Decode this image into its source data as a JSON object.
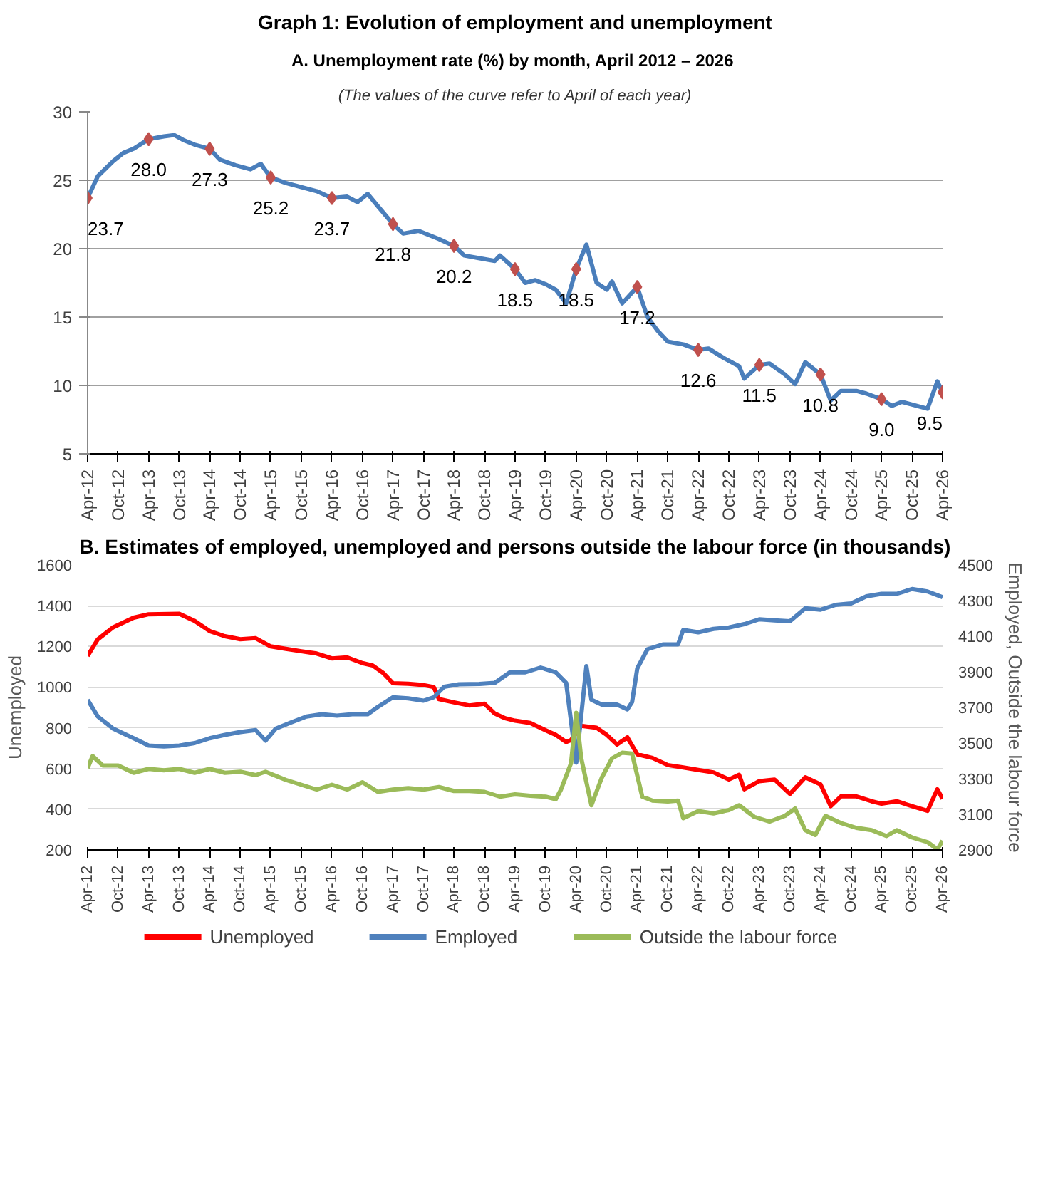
{
  "chart_data": [
    {
      "type": "line",
      "title": "Graph 1: Evolution of employment and unemployment",
      "subtitle": "A. Unemployment rate (%) by month, April  2012 – 2026",
      "annotations": [
        "(The values of the curve refer to April of each year)"
      ],
      "xlim": [
        "2012-04",
        "2026-04"
      ],
      "xticks": [
        {
          "value": "2012-04",
          "label": "Apr-12"
        },
        {
          "value": "2012-10",
          "label": "Oct-12"
        },
        {
          "value": "2013-04",
          "label": "Apr-13"
        },
        {
          "value": "2013-10",
          "label": "Oct-13"
        },
        {
          "value": "2014-04",
          "label": "Apr-14"
        },
        {
          "value": "2014-10",
          "label": "Oct-14"
        },
        {
          "value": "2015-04",
          "label": "Apr-15"
        },
        {
          "value": "2015-10",
          "label": "Oct-15"
        },
        {
          "value": "2016-04",
          "label": "Apr-16"
        },
        {
          "value": "2016-10",
          "label": "Oct-16"
        },
        {
          "value": "2017-04",
          "label": "Apr-17"
        },
        {
          "value": "2017-10",
          "label": "Oct-17"
        },
        {
          "value": "2018-04",
          "label": "Apr-18"
        },
        {
          "value": "2018-10",
          "label": "Oct-18"
        },
        {
          "value": "2019-04",
          "label": "Apr-19"
        },
        {
          "value": "2019-10",
          "label": "Oct-19"
        },
        {
          "value": "2020-04",
          "label": "Apr-20"
        },
        {
          "value": "2020-10",
          "label": "Oct-20"
        },
        {
          "value": "2021-04",
          "label": "Apr-21"
        },
        {
          "value": "2021-10",
          "label": "Oct-21"
        },
        {
          "value": "2022-04",
          "label": "Apr-22"
        },
        {
          "value": "2022-10",
          "label": "Oct-22"
        },
        {
          "value": "2023-04",
          "label": "Apr-23"
        },
        {
          "value": "2023-10",
          "label": "Oct-23"
        },
        {
          "value": "2024-04",
          "label": "Apr-24"
        },
        {
          "value": "2024-10",
          "label": "Oct-24"
        },
        {
          "value": "2025-04",
          "label": "Apr-25"
        },
        {
          "value": "2025-10",
          "label": "Oct-25"
        },
        {
          "value": "2026-04",
          "label": "Apr-26"
        }
      ],
      "ylim": [
        5,
        30
      ],
      "yticks": [
        5,
        10,
        15,
        20,
        25,
        30
      ],
      "grid": "y",
      "legend": false,
      "series": [
        {
          "type": "line",
          "color": "#4a7ebb",
          "x": [
            "2012-04",
            "2012-06",
            "2012-09",
            "2012-11",
            "2013-01",
            "2013-04",
            "2013-07",
            "2013-09",
            "2013-11",
            "2014-01",
            "2014-04",
            "2014-06",
            "2014-09",
            "2014-12",
            "2015-02",
            "2015-04",
            "2015-07",
            "2015-10",
            "2016-01",
            "2016-04",
            "2016-07",
            "2016-09",
            "2016-11",
            "2017-01",
            "2017-04",
            "2017-06",
            "2017-09",
            "2017-11",
            "2018-01",
            "2018-04",
            "2018-06",
            "2018-09",
            "2018-12",
            "2019-01",
            "2019-04",
            "2019-06",
            "2019-08",
            "2019-10",
            "2019-12",
            "2020-02",
            "2020-04",
            "2020-06",
            "2020-08",
            "2020-10",
            "2020-11",
            "2021-01",
            "2021-04",
            "2021-06",
            "2021-08",
            "2021-10",
            "2022-01",
            "2022-04",
            "2022-06",
            "2022-09",
            "2022-12",
            "2023-01",
            "2023-04",
            "2023-06",
            "2023-09",
            "2023-11",
            "2024-01",
            "2024-04",
            "2024-06",
            "2024-08",
            "2024-11",
            "2025-01",
            "2025-04",
            "2025-06",
            "2025-08",
            "2025-10",
            "2026-01",
            "2026-03",
            "2026-04"
          ],
          "values": [
            23.7,
            25.3,
            26.4,
            27.0,
            27.3,
            28.0,
            28.2,
            28.3,
            27.9,
            27.6,
            27.3,
            26.5,
            26.1,
            25.8,
            26.2,
            25.2,
            24.8,
            24.5,
            24.2,
            23.7,
            23.8,
            23.4,
            24.0,
            23.1,
            21.8,
            21.1,
            21.3,
            21.0,
            20.7,
            20.2,
            19.5,
            19.3,
            19.1,
            19.5,
            18.5,
            17.5,
            17.7,
            17.4,
            17.0,
            16.0,
            18.5,
            20.3,
            17.5,
            17.0,
            17.6,
            16.0,
            17.2,
            15.0,
            14.0,
            13.2,
            13.0,
            12.6,
            12.7,
            12.0,
            11.4,
            10.5,
            11.5,
            11.6,
            10.8,
            10.1,
            11.7,
            10.8,
            8.9,
            9.6,
            9.6,
            9.4,
            9.0,
            8.5,
            8.8,
            8.6,
            8.3,
            10.3,
            9.5
          ]
        },
        {
          "type": "scatter",
          "color": "#c0504d",
          "marker": "diamond",
          "value_labels": [
            "23.7",
            "28.0",
            "27.3",
            "25.2",
            "23.7",
            "21.8",
            "20.2",
            "18.5",
            "18.5",
            "17.2",
            "12.6",
            "11.5",
            "10.8",
            "9.0",
            "9.5"
          ],
          "x": [
            "2012-04",
            "2013-04",
            "2014-04",
            "2015-04",
            "2016-04",
            "2017-04",
            "2018-04",
            "2019-04",
            "2020-04",
            "2021-04",
            "2022-04",
            "2023-04",
            "2024-04",
            "2025-04",
            "2026-04"
          ],
          "values": [
            23.7,
            28.0,
            27.3,
            25.2,
            23.7,
            21.8,
            20.2,
            18.5,
            18.5,
            17.2,
            12.6,
            11.5,
            10.8,
            9.0,
            9.5
          ]
        }
      ]
    },
    {
      "type": "line",
      "title": "B. Estimates of employed, unemployed and persons outside the labour force (in thousands)",
      "ylabel": "Unemployed",
      "y2label": "Employed, Outside the labour force",
      "xlim": [
        "2012-04",
        "2026-04"
      ],
      "xticks": [
        {
          "value": "2012-04",
          "label": "Apr-12"
        },
        {
          "value": "2012-10",
          "label": "Oct-12"
        },
        {
          "value": "2013-04",
          "label": "Apr-13"
        },
        {
          "value": "2013-10",
          "label": "Oct-13"
        },
        {
          "value": "2014-04",
          "label": "Apr-14"
        },
        {
          "value": "2014-10",
          "label": "Oct-14"
        },
        {
          "value": "2015-04",
          "label": "Apr-15"
        },
        {
          "value": "2015-10",
          "label": "Oct-15"
        },
        {
          "value": "2016-04",
          "label": "Apr-16"
        },
        {
          "value": "2016-10",
          "label": "Oct-16"
        },
        {
          "value": "2017-04",
          "label": "Apr-17"
        },
        {
          "value": "2017-10",
          "label": "Oct-17"
        },
        {
          "value": "2018-04",
          "label": "Apr-18"
        },
        {
          "value": "2018-10",
          "label": "Oct-18"
        },
        {
          "value": "2019-04",
          "label": "Apr-19"
        },
        {
          "value": "2019-10",
          "label": "Oct-19"
        },
        {
          "value": "2020-04",
          "label": "Apr-20"
        },
        {
          "value": "2020-10",
          "label": "Oct-20"
        },
        {
          "value": "2021-04",
          "label": "Apr-21"
        },
        {
          "value": "2021-10",
          "label": "Oct-21"
        },
        {
          "value": "2022-04",
          "label": "Apr-22"
        },
        {
          "value": "2022-10",
          "label": "Oct-22"
        },
        {
          "value": "2023-04",
          "label": "Apr-23"
        },
        {
          "value": "2023-10",
          "label": "Oct-23"
        },
        {
          "value": "2024-04",
          "label": "Apr-24"
        },
        {
          "value": "2024-10",
          "label": "Oct-24"
        },
        {
          "value": "2025-04",
          "label": "Apr-25"
        },
        {
          "value": "2025-10",
          "label": "Oct-25"
        },
        {
          "value": "2026-04",
          "label": "Apr-26"
        }
      ],
      "ylim": [
        200,
        1600
      ],
      "yticks": [
        200,
        400,
        600,
        800,
        1000,
        1200,
        1400,
        1600
      ],
      "y2lim": [
        2900,
        4500
      ],
      "y2ticks": [
        2900,
        3100,
        3300,
        3500,
        3700,
        3900,
        4100,
        4300,
        4500
      ],
      "grid": "y",
      "legend": "bottom",
      "series": [
        {
          "name": "Unemployed",
          "color": "#ff0000",
          "x": [
            "2012-04",
            "2012-06",
            "2012-09",
            "2013-01",
            "2013-04",
            "2013-10",
            "2014-01",
            "2014-04",
            "2014-07",
            "2014-10",
            "2015-01",
            "2015-04",
            "2015-07",
            "2015-10",
            "2016-01",
            "2016-04",
            "2016-07",
            "2016-10",
            "2016-12",
            "2017-02",
            "2017-04",
            "2017-07",
            "2017-10",
            "2017-12",
            "2018-01",
            "2018-04",
            "2018-07",
            "2018-10",
            "2018-12",
            "2019-02",
            "2019-04",
            "2019-07",
            "2019-10",
            "2019-12",
            "2020-02",
            "2020-03",
            "2020-05",
            "2020-08",
            "2020-10",
            "2020-12",
            "2021-02",
            "2021-04",
            "2021-07",
            "2021-10",
            "2022-01",
            "2022-04",
            "2022-07",
            "2022-10",
            "2022-12",
            "2023-01",
            "2023-04",
            "2023-07",
            "2023-10",
            "2024-01",
            "2024-04",
            "2024-06",
            "2024-08",
            "2024-11",
            "2025-02",
            "2025-04",
            "2025-07",
            "2025-10",
            "2026-01",
            "2026-03",
            "2026-04"
          ],
          "values": [
            1153,
            1235,
            1294,
            1341,
            1358,
            1360,
            1325,
            1275,
            1250,
            1235,
            1240,
            1200,
            1188,
            1176,
            1165,
            1141,
            1146,
            1118,
            1106,
            1070,
            1019,
            1016,
            1010,
            1000,
            941,
            925,
            910,
            918,
            870,
            847,
            835,
            824,
            788,
            765,
            730,
            740,
            810,
            800,
            765,
            718,
            753,
            670,
            652,
            617,
            605,
            593,
            581,
            546,
            569,
            498,
            538,
            546,
            475,
            557,
            522,
            415,
            463,
            463,
            439,
            427,
            439,
            415,
            392,
            498,
            451
          ]
        },
        {
          "name": "Employed",
          "color": "#4f81bd",
          "axis": "y2",
          "x": [
            "2012-04",
            "2012-06",
            "2012-09",
            "2013-01",
            "2013-04",
            "2013-07",
            "2013-10",
            "2014-01",
            "2014-04",
            "2014-07",
            "2014-10",
            "2015-01",
            "2015-03",
            "2015-05",
            "2015-08",
            "2015-11",
            "2016-02",
            "2016-05",
            "2016-08",
            "2016-11",
            "2017-01",
            "2017-04",
            "2017-07",
            "2017-10",
            "2017-12",
            "2018-02",
            "2018-05",
            "2018-09",
            "2018-12",
            "2019-03",
            "2019-06",
            "2019-09",
            "2019-12",
            "2020-02",
            "2020-03",
            "2020-04",
            "2020-06",
            "2020-07",
            "2020-09",
            "2020-12",
            "2021-02",
            "2021-03",
            "2021-04",
            "2021-06",
            "2021-09",
            "2021-12",
            "2022-01",
            "2022-04",
            "2022-07",
            "2022-10",
            "2023-01",
            "2023-04",
            "2023-07",
            "2023-10",
            "2024-01",
            "2024-04",
            "2024-07",
            "2024-10",
            "2025-01",
            "2025-04",
            "2025-07",
            "2025-10",
            "2026-01",
            "2026-04"
          ],
          "values": [
            3743,
            3649,
            3581,
            3527,
            3486,
            3481,
            3486,
            3500,
            3527,
            3546,
            3562,
            3573,
            3514,
            3581,
            3616,
            3649,
            3662,
            3654,
            3662,
            3662,
            3703,
            3757,
            3751,
            3738,
            3757,
            3816,
            3830,
            3832,
            3838,
            3897,
            3897,
            3924,
            3897,
            3838,
            3622,
            3390,
            3932,
            3743,
            3716,
            3716,
            3689,
            3730,
            3919,
            4027,
            4054,
            4054,
            4135,
            4122,
            4141,
            4149,
            4168,
            4195,
            4189,
            4184,
            4257,
            4249,
            4276,
            4284,
            4324,
            4338,
            4338,
            4365,
            4351,
            4319
          ]
        },
        {
          "name": "Outside the labour force",
          "color": "#9bbb59",
          "axis": "y2",
          "x": [
            "2012-04",
            "2012-05",
            "2012-07",
            "2012-10",
            "2013-01",
            "2013-04",
            "2013-07",
            "2013-10",
            "2014-01",
            "2014-04",
            "2014-07",
            "2014-10",
            "2015-01",
            "2015-03",
            "2015-07",
            "2015-10",
            "2016-01",
            "2016-04",
            "2016-07",
            "2016-10",
            "2017-01",
            "2017-04",
            "2017-07",
            "2017-10",
            "2018-01",
            "2018-04",
            "2018-07",
            "2018-10",
            "2019-01",
            "2019-04",
            "2019-07",
            "2019-10",
            "2019-12",
            "2020-01",
            "2020-03",
            "2020-04",
            "2020-05",
            "2020-07",
            "2020-09",
            "2020-11",
            "2021-01",
            "2021-03",
            "2021-05",
            "2021-07",
            "2021-10",
            "2021-12",
            "2022-01",
            "2022-04",
            "2022-07",
            "2022-10",
            "2022-12",
            "2023-03",
            "2023-06",
            "2023-09",
            "2023-11",
            "2024-01",
            "2024-03",
            "2024-05",
            "2024-08",
            "2024-11",
            "2025-02",
            "2025-05",
            "2025-07",
            "2025-10",
            "2026-01",
            "2026-03",
            "2026-04"
          ],
          "values": [
            3360,
            3427,
            3374,
            3374,
            3333,
            3355,
            3347,
            3355,
            3333,
            3355,
            3333,
            3339,
            3320,
            3339,
            3293,
            3266,
            3239,
            3266,
            3239,
            3280,
            3226,
            3239,
            3247,
            3239,
            3253,
            3231,
            3231,
            3226,
            3199,
            3212,
            3204,
            3199,
            3185,
            3239,
            3387,
            3670,
            3414,
            3151,
            3306,
            3414,
            3446,
            3441,
            3199,
            3177,
            3172,
            3177,
            3078,
            3118,
            3105,
            3124,
            3151,
            3086,
            3059,
            3091,
            3132,
            3011,
            2984,
            3091,
            3051,
            3024,
            3011,
            2978,
            3011,
            2970,
            2944,
            2903,
            2952
          ]
        }
      ]
    }
  ]
}
